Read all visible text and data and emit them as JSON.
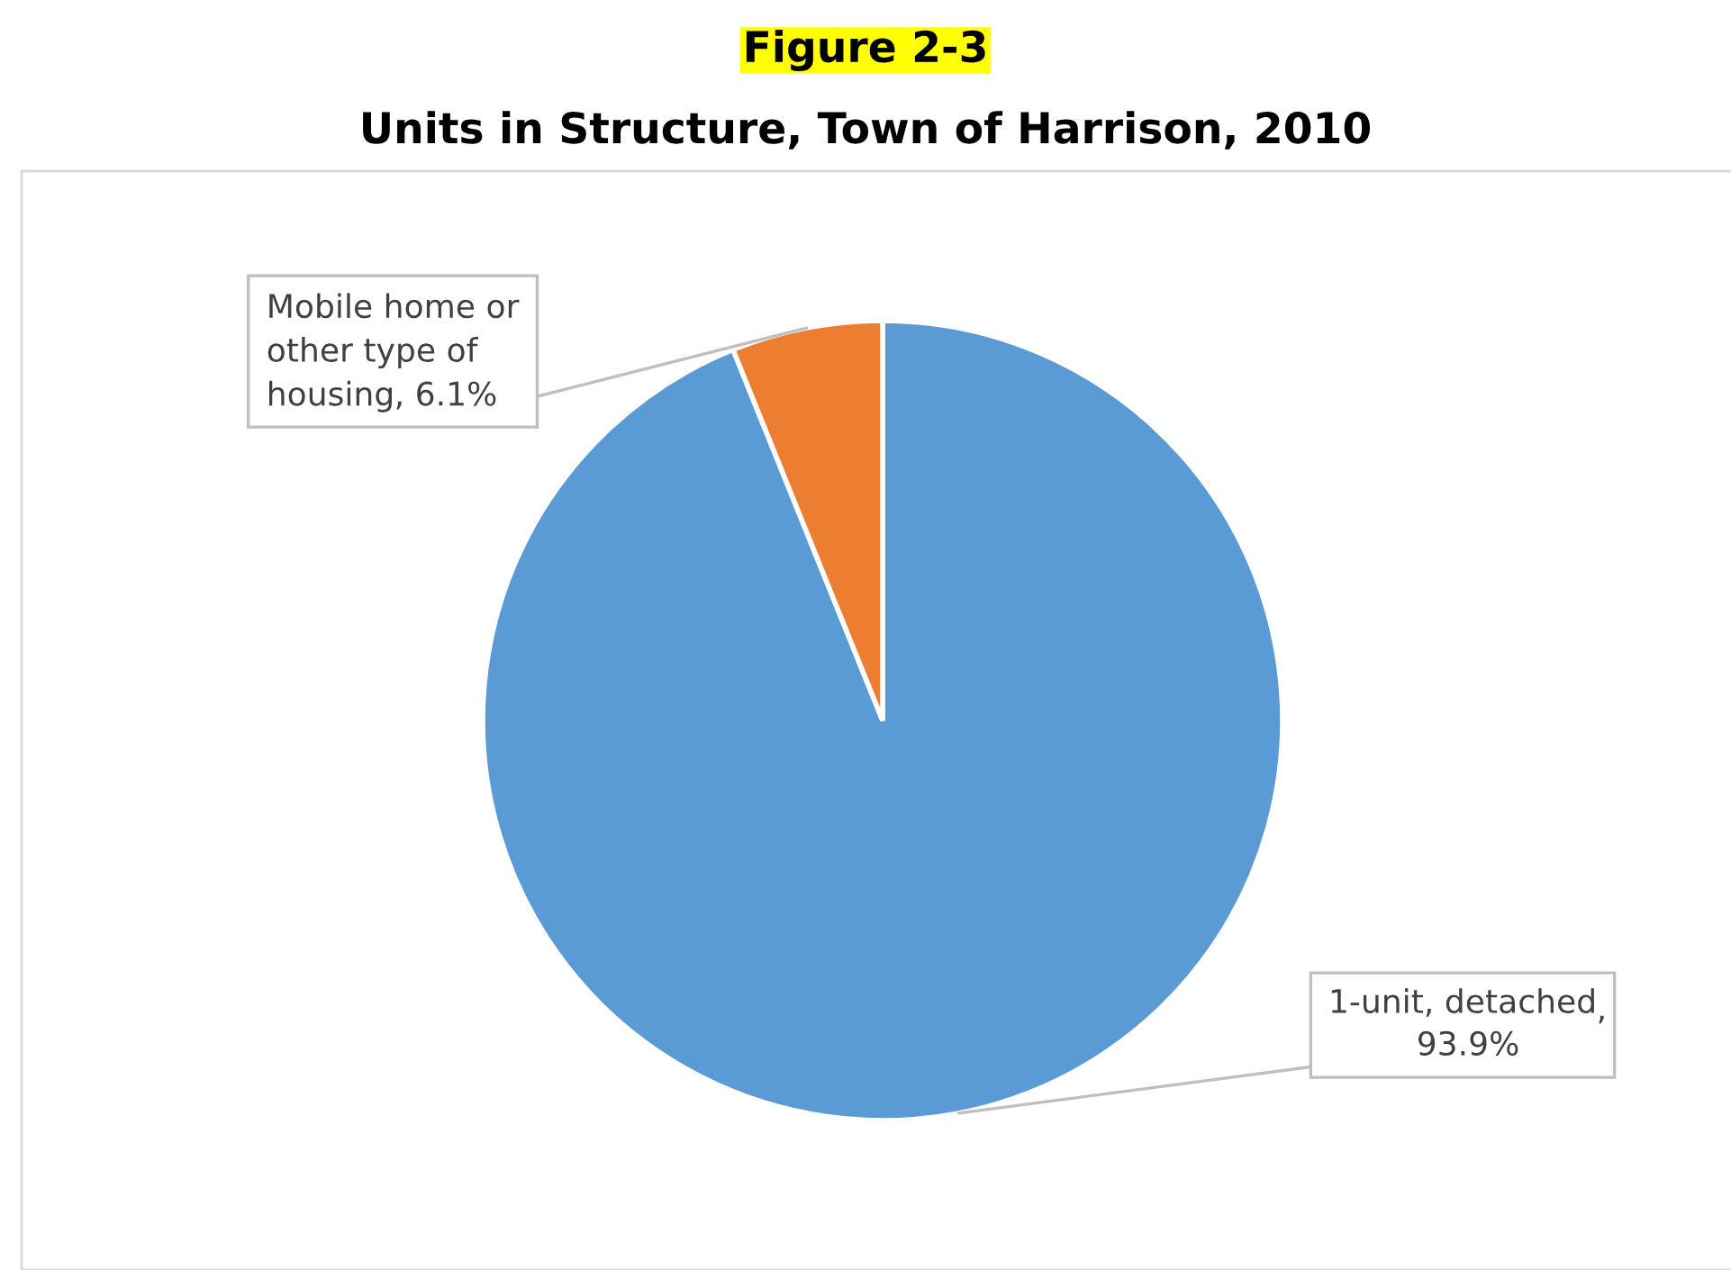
{
  "chart_data": {
    "type": "pie",
    "title": "Figure 2-3",
    "subtitle": "Units in Structure, Town of Harrison, 2010",
    "categories": [
      "1-unit, detached",
      "Mobile home or\nother type of\nhousing"
    ],
    "values": [
      93.9,
      6.1
    ],
    "value_labels": [
      ",\n93.9%",
      ", 6.1%"
    ],
    "colors": [
      "#5b9bd5",
      "#ed7d31"
    ],
    "legend": false
  }
}
